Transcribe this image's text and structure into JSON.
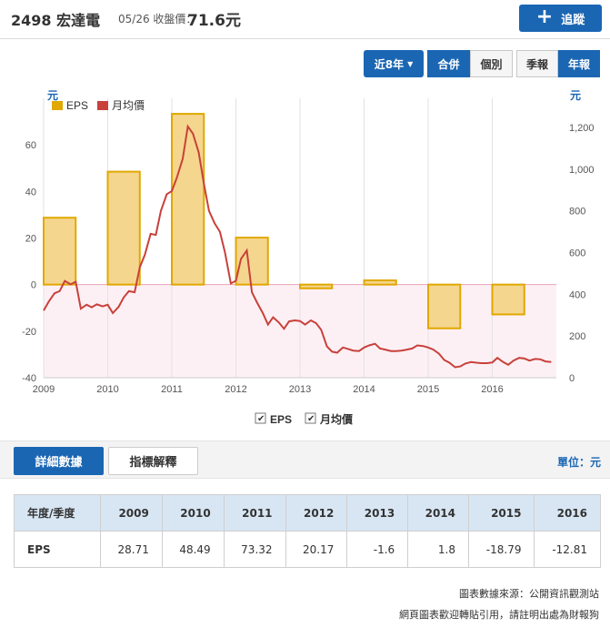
{
  "header": {
    "stock_code": "2498 宏達電",
    "price_label": "05/26 收盤價：",
    "price_value": "71.6元",
    "track_label": "追蹤"
  },
  "controls": {
    "period": "近8年",
    "merge_label": "合併",
    "separate_label": "個別",
    "quarterly_label": "季報",
    "annual_label": "年報"
  },
  "chart_data": {
    "type": "bar+line",
    "left_unit": "元",
    "right_unit": "元",
    "legend": [
      "EPS",
      "月均價"
    ],
    "left_ticks": [
      "60",
      "40",
      "20",
      "0",
      "-20",
      "-40"
    ],
    "right_ticks": [
      "1,200",
      "1,000",
      "800",
      "600",
      "400",
      "200",
      "0"
    ],
    "x_ticks": [
      "2009",
      "2010",
      "2011",
      "2012",
      "2013",
      "2014",
      "2015",
      "2016"
    ],
    "left_ylim": [
      -40,
      80
    ],
    "right_ylim": [
      0,
      1340
    ],
    "xlim": [
      2009,
      2017
    ],
    "eps": {
      "name": "EPS",
      "color": "#e0a800",
      "fill": "#f5d68f",
      "categories": [
        "2009",
        "2010",
        "2011",
        "2012",
        "2013",
        "2014",
        "2015",
        "2016"
      ],
      "values": [
        28.71,
        48.49,
        73.32,
        20.17,
        -1.6,
        1.8,
        -18.79,
        -12.81
      ]
    },
    "price": {
      "name": "月均價",
      "color": "#c8413b",
      "x": [
        2009.0,
        2009.08,
        2009.17,
        2009.25,
        2009.33,
        2009.42,
        2009.5,
        2009.58,
        2009.67,
        2009.75,
        2009.83,
        2009.92,
        2010.0,
        2010.08,
        2010.17,
        2010.25,
        2010.33,
        2010.42,
        2010.5,
        2010.58,
        2010.67,
        2010.75,
        2010.83,
        2010.92,
        2011.0,
        2011.08,
        2011.17,
        2011.25,
        2011.33,
        2011.42,
        2011.5,
        2011.58,
        2011.67,
        2011.75,
        2011.83,
        2011.92,
        2012.0,
        2012.08,
        2012.17,
        2012.25,
        2012.33,
        2012.42,
        2012.5,
        2012.58,
        2012.67,
        2012.75,
        2012.83,
        2012.92,
        2013.0,
        2013.08,
        2013.17,
        2013.25,
        2013.33,
        2013.42,
        2013.5,
        2013.58,
        2013.67,
        2013.75,
        2013.83,
        2013.92,
        2014.0,
        2014.08,
        2014.17,
        2014.25,
        2014.33,
        2014.42,
        2014.5,
        2014.58,
        2014.67,
        2014.75,
        2014.83,
        2014.92,
        2015.0,
        2015.08,
        2015.17,
        2015.25,
        2015.33,
        2015.42,
        2015.5,
        2015.58,
        2015.67,
        2015.75,
        2015.83,
        2015.92,
        2016.0,
        2016.08,
        2016.17,
        2016.25,
        2016.33,
        2016.42,
        2016.5,
        2016.58,
        2016.67,
        2016.75,
        2016.83,
        2016.92
      ],
      "values": [
        322,
        365,
        405,
        415,
        464,
        448,
        460,
        331,
        350,
        338,
        352,
        342,
        350,
        310,
        340,
        385,
        415,
        410,
        530,
        590,
        690,
        685,
        800,
        880,
        895,
        960,
        1050,
        1205,
        1170,
        1080,
        930,
        800,
        740,
        700,
        600,
        452,
        465,
        570,
        610,
        410,
        360,
        310,
        255,
        290,
        265,
        235,
        270,
        275,
        272,
        255,
        275,
        262,
        230,
        150,
        125,
        120,
        145,
        138,
        130,
        128,
        145,
        155,
        163,
        140,
        135,
        128,
        128,
        130,
        135,
        140,
        155,
        152,
        145,
        135,
        115,
        85,
        72,
        50,
        54,
        68,
        75,
        72,
        70,
        70,
        73,
        95,
        75,
        62,
        82,
        95,
        92,
        82,
        90,
        88,
        78,
        75
      ]
    }
  },
  "table": {
    "header_label": "年度/季度",
    "years": [
      "2009",
      "2010",
      "2011",
      "2012",
      "2013",
      "2014",
      "2015",
      "2016"
    ],
    "row_label": "EPS",
    "eps": [
      "28.71",
      "48.49",
      "73.32",
      "20.17",
      "-1.6",
      "1.8",
      "-18.79",
      "-12.81"
    ]
  },
  "tabs": {
    "detail": "詳細數據",
    "explain": "指標解釋",
    "unit": "單位：元"
  },
  "footer": {
    "source": "圖表數據來源：公開資訊觀測站",
    "notice": "網頁圖表歡迎轉貼引用，請註明出處為財報狗"
  },
  "colors": {
    "accent": "#1a66b3",
    "eps_border": "#e0a800",
    "eps_fill": "#f5d68f",
    "price_line": "#c8413b",
    "negative_band": "#fdf0f4"
  }
}
